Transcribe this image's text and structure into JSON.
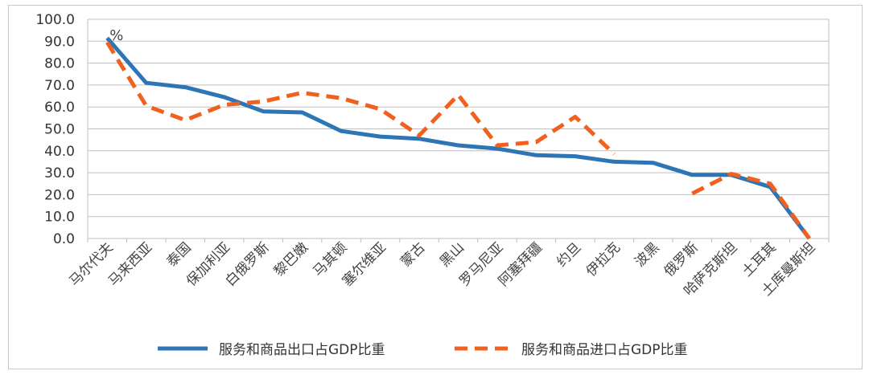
{
  "chart_data": {
    "type": "line",
    "unit_label": "%",
    "categories": [
      "马尔代夫",
      "马来西亚",
      "泰国",
      "保加利亚",
      "白俄罗斯",
      "黎巴嫩",
      "马其顿",
      "塞尔维亚",
      "蒙古",
      "黑山",
      "罗马尼亚",
      "阿塞拜疆",
      "约旦",
      "伊拉克",
      "波黑",
      "俄罗斯",
      "哈萨克斯坦",
      "土耳其",
      "土库曼斯坦"
    ],
    "ylim": [
      0,
      100
    ],
    "yticks": [
      "0.0",
      "10.0",
      "20.0",
      "30.0",
      "40.0",
      "50.0",
      "60.0",
      "70.0",
      "80.0",
      "90.0",
      "100.0"
    ],
    "grid": true,
    "legend_position": "bottom",
    "series": [
      {
        "name": "服务和商品出口占GDP比重",
        "color": "#2e75b6",
        "style": "solid",
        "values": [
          91.5,
          71,
          69,
          64.5,
          58,
          57.5,
          49,
          46.5,
          45.5,
          42.5,
          41,
          38,
          37.5,
          35,
          34.5,
          29,
          29,
          23.5,
          0
        ]
      },
      {
        "name": "服务和商品进口占GDP比重",
        "color": "#f0601e",
        "style": "dashed",
        "values": [
          89.5,
          60.5,
          54,
          61,
          62.5,
          66.5,
          64,
          59,
          47,
          65.5,
          42.5,
          44,
          55.5,
          38.5,
          null,
          20.5,
          29.5,
          25,
          0
        ]
      }
    ]
  }
}
